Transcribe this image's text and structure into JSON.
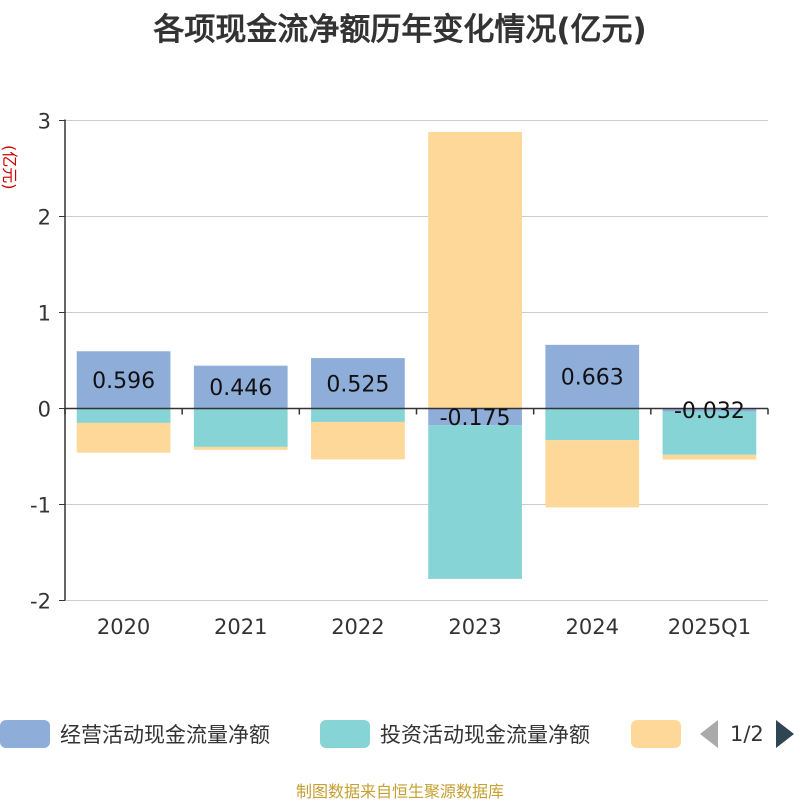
{
  "chart_data": {
    "type": "bar",
    "stacked": true,
    "title": "各项现金流净额历年变化情况(亿元)",
    "ylabel": "(亿元)",
    "xlabel": "",
    "ylim": [
      -2,
      3
    ],
    "yticks": [
      "3",
      "2",
      "1",
      "0",
      "-1",
      "-2"
    ],
    "categories": [
      "2020",
      "2021",
      "2022",
      "2023",
      "2024",
      "2025Q1"
    ],
    "series": [
      {
        "name": "经营活动现金流量净额",
        "color": "#8fadd9",
        "values": [
          0.596,
          0.446,
          0.525,
          -0.175,
          0.663,
          -0.032
        ],
        "labels": [
          "0.596",
          "0.446",
          "0.525",
          "-0.175",
          "0.663",
          "-0.032"
        ]
      },
      {
        "name": "投资活动现金流量净额",
        "color": "#86d4d6",
        "values": [
          -0.15,
          -0.4,
          -0.14,
          -1.6,
          -0.33,
          -0.45
        ]
      },
      {
        "name": "",
        "color": "#fed899",
        "values": [
          -0.31,
          -0.03,
          -0.39,
          2.88,
          -0.7,
          -0.05
        ]
      }
    ],
    "legend_position": "bottom",
    "grid": true
  },
  "legend": {
    "items": [
      {
        "label": "经营活动现金流量净额",
        "color": "#8fadd9"
      },
      {
        "label": "投资活动现金流量净额",
        "color": "#86d4d6"
      },
      {
        "label": "",
        "color": "#fed899"
      }
    ],
    "page": "1/2"
  },
  "source": "制图数据来自恒生聚源数据库",
  "ylabel_color": "#cc0000"
}
